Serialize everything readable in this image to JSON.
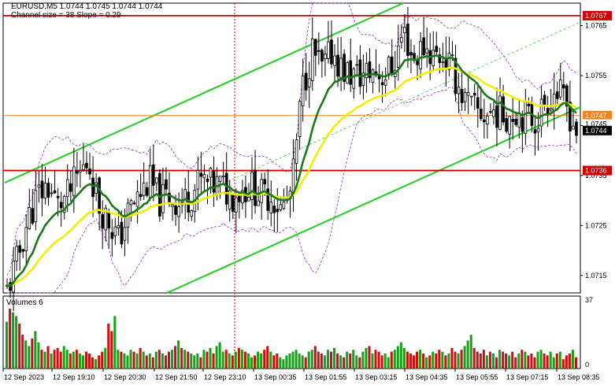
{
  "header": {
    "symbol_line": "EURUSD,M5  1.0744 1.0745 1.0744 1.0744",
    "indicator_line": "Channel size = 38 Slope = 0.29"
  },
  "volumes_panel": {
    "label": "Volumes 6",
    "scale_top": "37",
    "scale_bottom": "0"
  },
  "price_scale": {
    "ticks": [
      "1.0765",
      "1.0755",
      "1.0745",
      "1.0735",
      "1.0725",
      "1.0715"
    ]
  },
  "price_tags": {
    "upper_resistance": "1.0767",
    "upper_line": "1.0747",
    "partial": "1.0745",
    "current": "1.0744",
    "support": "1.0736"
  },
  "time_axis": {
    "labels": [
      "12 Sep 2023",
      "12 Sep 19:10",
      "12 Sep 20:30",
      "12 Sep 21:50",
      "12 Sep 23:10",
      "13 Sep 00:35",
      "13 Sep 01:55",
      "13 Sep 03:15",
      "13 Sep 04:35",
      "13 Sep 05:55",
      "13 Sep 07:15",
      "13 Sep 08:35"
    ]
  },
  "colors": {
    "background": "#ffffff",
    "bull_candle": "#ffffff",
    "bear_candle": "#000000",
    "candle_outline": "#000000",
    "ma_fast": "#1a7a1a",
    "ma_slow": "#f0f000",
    "channel": "#33cc33",
    "channel_mid": "#33cc33",
    "bands": "#9a30c8",
    "resistance": "#cc0000",
    "orange_line": "#f08020",
    "volume_up": "#18a018",
    "volume_down": "#cc1010",
    "grid": "#c8c8c8"
  },
  "chart_data": {
    "type": "candlestick",
    "symbol": "EURUSD",
    "timeframe": "M5",
    "ylim": [
      1.07115,
      1.07695
    ],
    "horizontal_levels": [
      1.0767,
      1.0747,
      1.0736
    ],
    "close_path": [
      1.0712,
      1.0718,
      1.0726,
      1.0731,
      1.0733,
      1.0729,
      1.0731,
      1.0735,
      1.0738,
      1.0729,
      1.0726,
      1.0722,
      1.0728,
      1.0731,
      1.0734,
      1.073,
      1.0731,
      1.0729,
      1.0731,
      1.0734,
      1.0733,
      1.0733,
      1.0731,
      1.0732,
      1.0733,
      1.0731,
      1.0731,
      1.0728,
      1.0732,
      1.0752,
      1.076,
      1.0756,
      1.076,
      1.0756,
      1.0755,
      1.0755,
      1.0756,
      1.0755,
      1.0757,
      1.0764,
      1.0758,
      1.0761,
      1.0759,
      1.0759,
      1.0755,
      1.075,
      1.0748,
      1.0747,
      1.0748,
      1.0747,
      1.0748,
      1.0747,
      1.0746,
      1.075,
      1.0752,
      1.0749,
      1.0744
    ],
    "volumes": [
      25,
      32,
      30,
      28,
      24,
      18,
      15,
      12,
      16,
      20,
      14,
      10,
      9,
      12,
      8,
      10,
      11,
      9,
      12,
      10,
      8,
      9,
      10,
      8,
      7,
      9,
      8,
      6,
      5,
      7,
      9,
      11,
      24,
      20,
      28,
      10,
      9,
      8,
      7,
      10,
      9,
      8,
      11,
      9,
      7,
      8,
      6,
      9,
      10,
      8,
      7,
      9,
      10,
      12,
      15,
      11,
      10,
      9,
      8,
      7,
      8,
      6,
      10,
      9,
      11,
      8,
      12,
      14,
      9,
      10,
      8,
      7,
      9,
      11,
      10,
      9,
      8,
      6,
      7,
      9,
      8,
      10,
      12,
      9,
      7,
      8,
      6,
      5,
      7,
      8,
      9,
      10,
      8,
      7,
      6,
      9,
      10,
      12,
      9,
      8,
      7,
      10,
      9,
      11,
      8,
      7,
      6,
      9,
      8,
      10,
      7,
      6,
      9,
      11,
      12,
      8,
      10,
      9,
      7,
      8,
      6,
      9,
      10,
      12,
      14,
      11,
      9,
      8,
      7,
      9,
      10,
      8,
      6,
      7,
      9,
      8,
      10,
      9,
      7,
      8,
      11,
      9,
      8,
      10,
      12,
      15,
      18,
      11,
      9,
      8,
      10,
      7,
      9,
      8,
      6,
      10,
      9,
      8,
      7,
      9,
      6,
      8,
      10,
      9,
      7,
      8,
      6,
      9,
      10,
      8,
      7,
      9,
      6,
      8,
      9,
      5,
      7,
      8,
      10,
      6
    ]
  }
}
